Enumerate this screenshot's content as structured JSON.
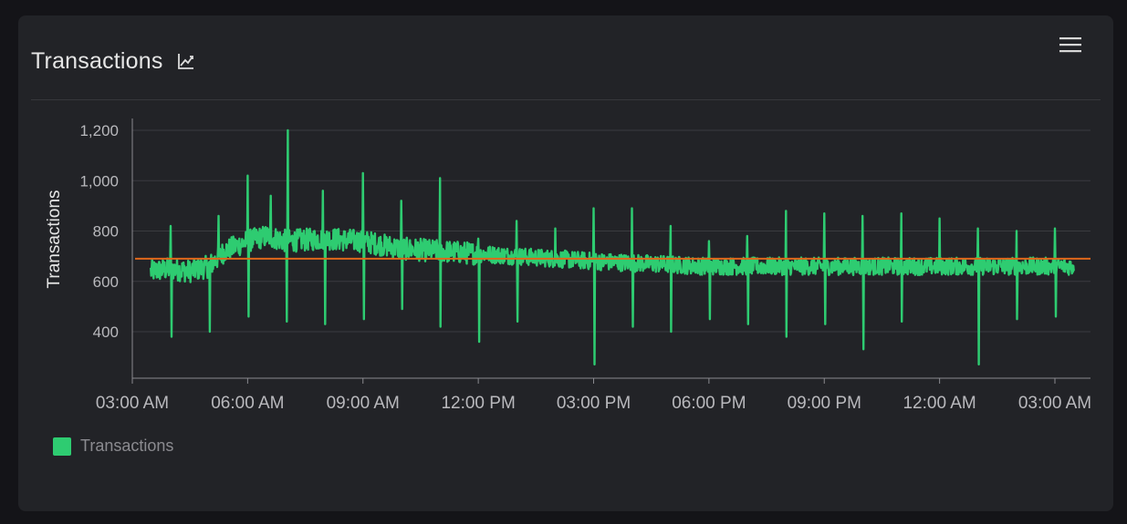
{
  "panel": {
    "title": "Transactions",
    "title_icon": "chart-line-icon",
    "menu_icon": "hamburger-menu-icon"
  },
  "colors": {
    "series": "#2ecc71",
    "threshold": "#e0671b",
    "grid": "#3a3b40",
    "axis": "#8a8a8f"
  },
  "legend": {
    "items": [
      {
        "label": "Transactions",
        "color": "#2ecc71"
      }
    ]
  },
  "chart_data": {
    "type": "line",
    "title": "Transactions",
    "xlabel": "",
    "ylabel": "Transactions",
    "ylim": [
      220,
      1240
    ],
    "yticks": [
      400,
      600,
      800,
      1000,
      1200
    ],
    "ytick_labels": [
      "400",
      "600",
      "800",
      "1,000",
      "1,200"
    ],
    "xlim": [
      "03:00 AM",
      "03:00 AM (+1 day)"
    ],
    "xtick_labels": [
      "03:00 AM",
      "06:00 AM",
      "09:00 AM",
      "12:00 PM",
      "03:00 PM",
      "06:00 PM",
      "09:00 PM",
      "12:00 AM",
      "03:00 AM"
    ],
    "x_range_hours": [
      0.48,
      24.5
    ],
    "grid": true,
    "threshold_line": 690,
    "series": [
      {
        "name": "Transactions",
        "baseline": [
          [
            0.48,
            640
          ],
          [
            1.0,
            650
          ],
          [
            1.5,
            640
          ],
          [
            2.0,
            660
          ],
          [
            2.4,
            720
          ],
          [
            3.0,
            760
          ],
          [
            3.5,
            780
          ],
          [
            4.0,
            760
          ],
          [
            5.0,
            770
          ],
          [
            6.0,
            760
          ],
          [
            7.0,
            730
          ],
          [
            8.0,
            720
          ],
          [
            9.0,
            710
          ],
          [
            10.0,
            700
          ],
          [
            12.0,
            680
          ],
          [
            15.0,
            660
          ],
          [
            18.0,
            660
          ],
          [
            21.0,
            660
          ],
          [
            24.5,
            660
          ]
        ],
        "spikes_high": [
          [
            1.0,
            820
          ],
          [
            2.25,
            860
          ],
          [
            3.0,
            1020
          ],
          [
            3.6,
            940
          ],
          [
            4.05,
            1200
          ],
          [
            4.95,
            960
          ],
          [
            6.0,
            1030
          ],
          [
            7.0,
            920
          ],
          [
            8.0,
            1010
          ],
          [
            9.0,
            770
          ],
          [
            10.0,
            840
          ],
          [
            11.0,
            810
          ],
          [
            12.0,
            890
          ],
          [
            13.0,
            890
          ],
          [
            14.0,
            820
          ],
          [
            15.0,
            760
          ],
          [
            16.0,
            780
          ],
          [
            17.0,
            880
          ],
          [
            18.0,
            870
          ],
          [
            19.0,
            860
          ],
          [
            20.0,
            870
          ],
          [
            21.0,
            850
          ],
          [
            22.0,
            810
          ],
          [
            23.0,
            800
          ],
          [
            24.0,
            810
          ]
        ],
        "spikes_low": [
          [
            1.0,
            380
          ],
          [
            2.0,
            400
          ],
          [
            3.0,
            460
          ],
          [
            4.0,
            440
          ],
          [
            5.0,
            430
          ],
          [
            6.0,
            450
          ],
          [
            7.0,
            490
          ],
          [
            8.0,
            420
          ],
          [
            9.0,
            360
          ],
          [
            10.0,
            440
          ],
          [
            12.0,
            270
          ],
          [
            13.0,
            420
          ],
          [
            14.0,
            400
          ],
          [
            15.0,
            450
          ],
          [
            16.0,
            430
          ],
          [
            17.0,
            380
          ],
          [
            18.0,
            430
          ],
          [
            19.0,
            330
          ],
          [
            20.0,
            440
          ],
          [
            22.0,
            270
          ],
          [
            23.0,
            450
          ],
          [
            24.0,
            460
          ]
        ]
      }
    ]
  }
}
